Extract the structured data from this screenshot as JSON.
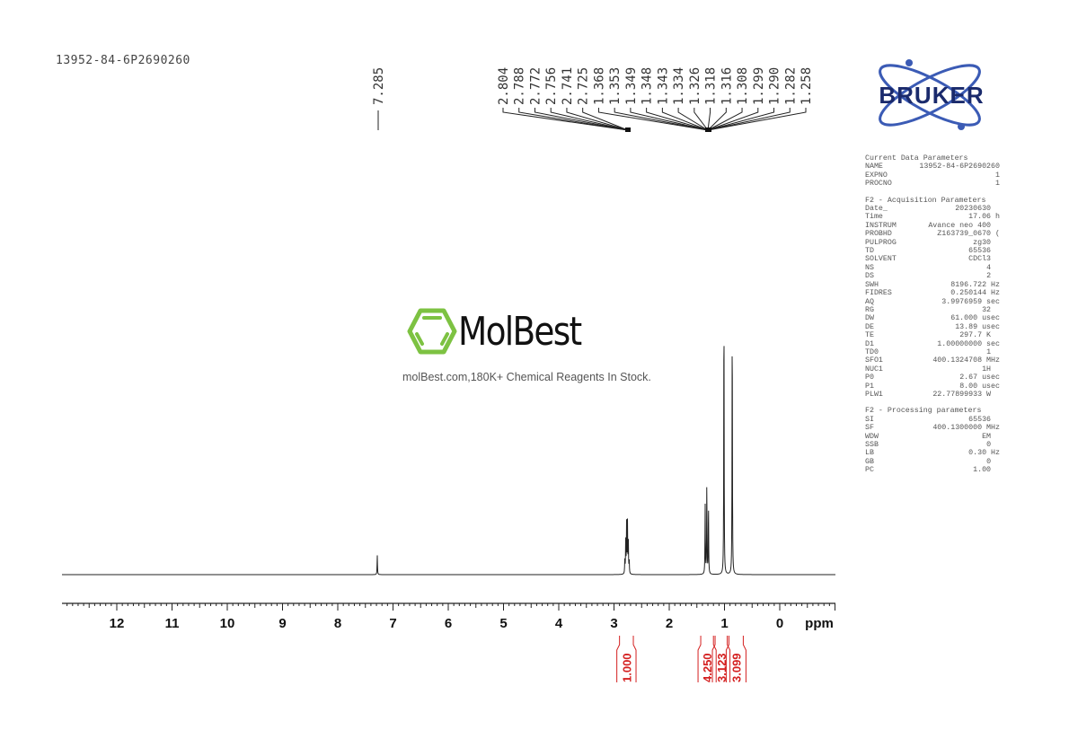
{
  "sample_name": "13952-84-6P2690260",
  "watermark": {
    "brand": "MolBest",
    "tagline": "molBest.com,180K+ Chemical Reagents In Stock.",
    "brand_color": "#7dc242"
  },
  "logo": {
    "text": "BRUKER",
    "color": "#1a2a6c",
    "accent": "#3b5bb5"
  },
  "parameters": {
    "sections": [
      {
        "title": "Current Data Parameters",
        "rows": [
          [
            "NAME",
            "13952-84-6P2690260"
          ],
          [
            "EXPNO",
            "1"
          ],
          [
            "PROCNO",
            "1"
          ]
        ]
      },
      {
        "title": "F2 - Acquisition Parameters",
        "rows": [
          [
            "Date_",
            "20230630  "
          ],
          [
            "Time",
            "17.06 h"
          ],
          [
            "INSTRUM",
            "Avance neo 400  "
          ],
          [
            "PROBHD",
            "Z163739_0670 ("
          ],
          [
            "PULPROG",
            "zg30  "
          ],
          [
            "TD",
            "65536  "
          ],
          [
            "SOLVENT",
            "CDCl3  "
          ],
          [
            "NS",
            "4  "
          ],
          [
            "DS",
            "2  "
          ],
          [
            "SWH",
            "8196.722 Hz"
          ],
          [
            "FIDRES",
            "0.250144 Hz"
          ],
          [
            "AQ",
            "3.9976959 sec"
          ],
          [
            "RG",
            "32  "
          ],
          [
            "DW",
            "61.000 usec"
          ],
          [
            "DE",
            "13.89 usec"
          ],
          [
            "TE",
            "297.7 K  "
          ],
          [
            "D1",
            "1.00000000 sec"
          ],
          [
            "TD0",
            "1  "
          ],
          [
            "SFO1",
            "400.1324708 MHz"
          ],
          [
            "NUC1",
            "1H  "
          ],
          [
            "P0",
            "2.67 usec"
          ],
          [
            "P1",
            "8.00 usec"
          ],
          [
            "PLW1",
            "22.77899933 W  "
          ]
        ]
      },
      {
        "title": "F2 - Processing parameters",
        "rows": [
          [
            "SI",
            "65536  "
          ],
          [
            "SF",
            "400.1300000 MHz"
          ],
          [
            "WDW",
            "EM  "
          ],
          [
            "SSB",
            "0  "
          ],
          [
            "LB",
            "0.30 Hz"
          ],
          [
            "GB",
            "0  "
          ],
          [
            "PC",
            "1.00  "
          ]
        ]
      }
    ]
  },
  "chart_data": {
    "type": "line",
    "title": "",
    "xlabel": "ppm",
    "xlim": [
      13,
      -1
    ],
    "x_reversed": true,
    "grid": false,
    "x_ticks": [
      "12",
      "11",
      "10",
      "9",
      "8",
      "7",
      "6",
      "5",
      "4",
      "3",
      "2",
      "1",
      "0"
    ],
    "peak_labels_single": [
      "7.285"
    ],
    "peak_labels_group": [
      "2.804",
      "2.788",
      "2.772",
      "2.756",
      "2.741",
      "2.725",
      "1.368",
      "1.353",
      "1.349",
      "1.348",
      "1.343",
      "1.334",
      "1.326",
      "1.318",
      "1.316",
      "1.308",
      "1.299",
      "1.290",
      "1.282",
      "1.258"
    ],
    "peaks": [
      {
        "ppm": 7.285,
        "intensity": 0.07
      },
      {
        "ppm": 2.804,
        "intensity": 0.05
      },
      {
        "ppm": 2.788,
        "intensity": 0.12
      },
      {
        "ppm": 2.772,
        "intensity": 0.18
      },
      {
        "ppm": 2.756,
        "intensity": 0.18
      },
      {
        "ppm": 2.741,
        "intensity": 0.12
      },
      {
        "ppm": 2.725,
        "intensity": 0.05
      },
      {
        "ppm": 1.35,
        "intensity": 0.25
      },
      {
        "ppm": 1.32,
        "intensity": 0.33
      },
      {
        "ppm": 1.29,
        "intensity": 0.25
      },
      {
        "ppm": 1.01,
        "intensity": 1.0
      },
      {
        "ppm": 0.86,
        "intensity": 0.94
      }
    ],
    "integrals": [
      {
        "from": 2.9,
        "to": 2.65,
        "value": "1.000"
      },
      {
        "from": 1.43,
        "to": 1.2,
        "value": "4.250"
      },
      {
        "from": 1.17,
        "to": 0.95,
        "value": "3.123"
      },
      {
        "from": 0.92,
        "to": 0.66,
        "value": "3.099"
      }
    ],
    "integral_color": "#d42020"
  }
}
